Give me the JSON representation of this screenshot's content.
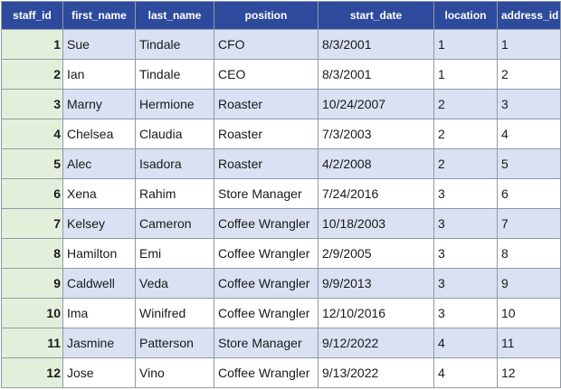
{
  "table": {
    "columns": [
      "staff_id",
      "first_name",
      "last_name",
      "position",
      "start_date",
      "location",
      "address_id"
    ],
    "rows": [
      [
        "1",
        "Sue",
        "Tindale",
        "CFO",
        "8/3/2001",
        "1",
        "1"
      ],
      [
        "2",
        "Ian",
        "Tindale",
        "CEO",
        "8/3/2001",
        "1",
        "2"
      ],
      [
        "3",
        "Marny",
        "Hermione",
        "Roaster",
        "10/24/2007",
        "2",
        "3"
      ],
      [
        "4",
        "Chelsea",
        "Claudia",
        "Roaster",
        "7/3/2003",
        "2",
        "4"
      ],
      [
        "5",
        "Alec",
        "Isadora",
        "Roaster",
        "4/2/2008",
        "2",
        "5"
      ],
      [
        "6",
        "Xena",
        "Rahim",
        "Store Manager",
        "7/24/2016",
        "3",
        "6"
      ],
      [
        "7",
        "Kelsey",
        "Cameron",
        "Coffee Wrangler",
        "10/18/2003",
        "3",
        "7"
      ],
      [
        "8",
        "Hamilton",
        "Emi",
        "Coffee Wrangler",
        "2/9/2005",
        "3",
        "8"
      ],
      [
        "9",
        "Caldwell",
        "Veda",
        "Coffee Wrangler",
        "9/9/2013",
        "3",
        "9"
      ],
      [
        "10",
        "Ima",
        "Winifred",
        "Coffee Wrangler",
        "12/10/2016",
        "3",
        "10"
      ],
      [
        "11",
        "Jasmine",
        "Patterson",
        "Store Manager",
        "9/12/2022",
        "4",
        "11"
      ],
      [
        "12",
        "Jose",
        "Vino",
        "Coffee Wrangler",
        "9/13/2022",
        "4",
        "12"
      ]
    ]
  },
  "colors": {
    "header_bg": "#2e4a9c",
    "header_text": "#ffffff",
    "id_column_bg": "#e3efda",
    "band_bg": "#d9e1f2",
    "plain_bg": "#ffffff",
    "grid_line": "#8f9aa8"
  }
}
